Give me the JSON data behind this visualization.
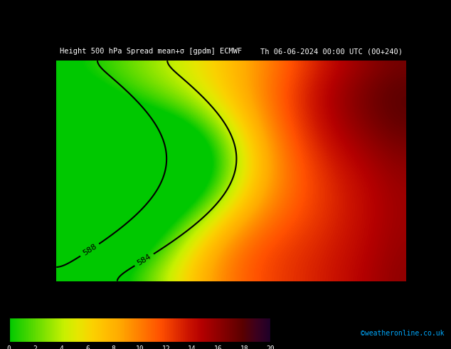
{
  "title": "Height 500 hPa Spread mean+σ [gpdm] ECMWF    Th 06-06-2024 00:00 UTC (00+240)",
  "title_left": "Height 500 hPa Spread mean+σ [gpdm] ECMWF",
  "title_right": "Th 06-06-2024 00:00 UTC (00+240)",
  "colorbar_ticks": [
    0,
    2,
    4,
    6,
    8,
    10,
    12,
    14,
    16,
    18,
    20
  ],
  "colorbar_label": "",
  "watermark": "©weatheronline.co.uk",
  "background_color": "#c8c8c8",
  "title_bg": "#000000",
  "title_text_color": "#ffffff",
  "bottom_bg": "#000000",
  "bottom_text_color": "#ffffff",
  "colormap_colors": [
    "#00c800",
    "#32d200",
    "#64dc00",
    "#96e600",
    "#c8f000",
    "#e6e600",
    "#fad200",
    "#ffbe00",
    "#ffaa00",
    "#ff8c00",
    "#ff6e00",
    "#ff5000",
    "#e63200",
    "#cc1400",
    "#b40000",
    "#960000",
    "#780000",
    "#5a0000",
    "#3c001e",
    "#1e0028"
  ],
  "vmin": 0,
  "vmax": 20,
  "contour_color": "#000000",
  "contour_labels": [
    "584",
    "588"
  ],
  "map_bg": "#a0a0b0"
}
